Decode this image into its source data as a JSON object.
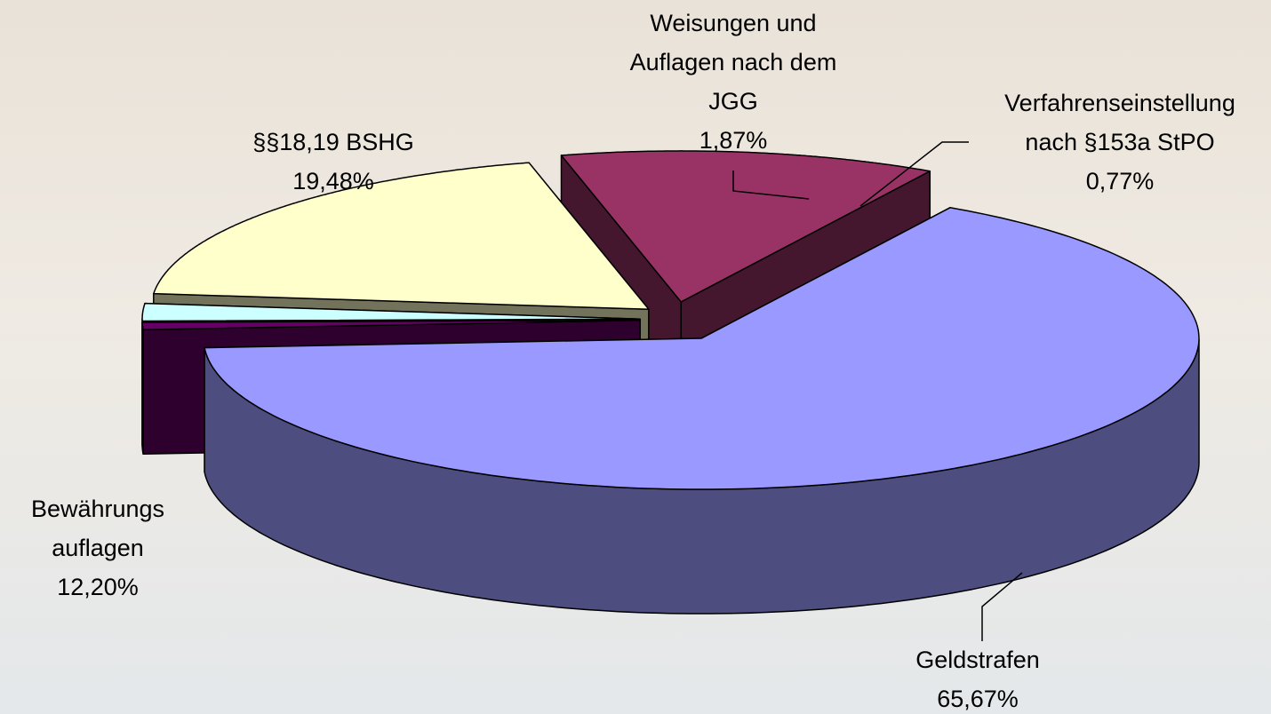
{
  "chart_data": {
    "type": "pie3d",
    "categories": [
      "Geldstrafen",
      "Verfahrenseinstellung\nnach §153a StPO",
      "Weisungen und\nAuflagen nach dem\nJGG",
      "§§18,19 BSHG",
      "Bewährungs\nauflagen"
    ],
    "values": [
      65.67,
      0.77,
      1.87,
      19.48,
      12.2
    ],
    "value_labels": [
      "65,67%",
      "0,77%",
      "1,87%",
      "19,48%",
      "12,20%"
    ],
    "colors": [
      "#9999ff",
      "#660066",
      "#ccffff",
      "#ffffcc",
      "#993366"
    ]
  }
}
